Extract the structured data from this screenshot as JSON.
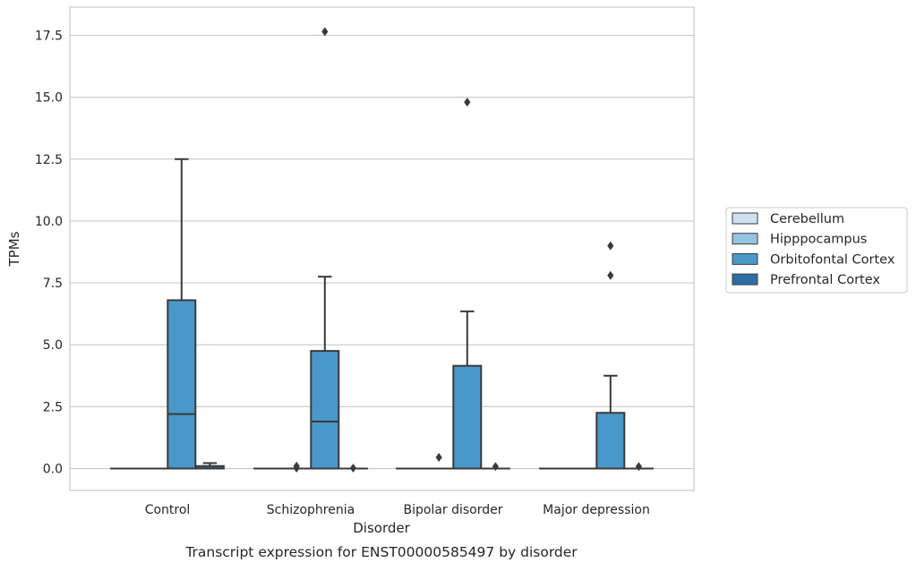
{
  "chart_data": {
    "type": "box",
    "title": "",
    "caption": "Transcript expression for ENST00000585497 by disorder",
    "xlabel": "Disorder",
    "ylabel": "TPMs",
    "ylim": [
      -0.85,
      18.55
    ],
    "yticks": [
      0.0,
      2.5,
      5.0,
      7.5,
      10.0,
      12.5,
      15.0,
      17.5
    ],
    "ytick_labels": [
      "0.0",
      "2.5",
      "5.0",
      "7.5",
      "10.0",
      "12.5",
      "15.0",
      "17.5"
    ],
    "grid": "horizontal",
    "legend_position": "center-right outside",
    "categories": [
      "Control",
      "Schizophrenia",
      "Bipolar disorder",
      "Major depression"
    ],
    "series": [
      {
        "name": "Cerebellum",
        "color": "#d0e1f2",
        "boxes": [
          {
            "q1": 0.0,
            "median": 0.0,
            "q3": 0.0,
            "whisker_low": 0.0,
            "whisker_high": 0.0,
            "outliers": []
          },
          {
            "q1": 0.0,
            "median": 0.0,
            "q3": 0.0,
            "whisker_low": 0.0,
            "whisker_high": 0.0,
            "outliers": []
          },
          {
            "q1": 0.0,
            "median": 0.0,
            "q3": 0.0,
            "whisker_low": 0.0,
            "whisker_high": 0.0,
            "outliers": []
          },
          {
            "q1": 0.0,
            "median": 0.0,
            "q3": 0.0,
            "whisker_low": 0.0,
            "whisker_high": 0.0,
            "outliers": []
          }
        ]
      },
      {
        "name": "Hipppocampus",
        "color": "#94c4df",
        "boxes": [
          {
            "q1": 0.0,
            "median": 0.0,
            "q3": 0.0,
            "whisker_low": 0.0,
            "whisker_high": 0.0,
            "outliers": []
          },
          {
            "q1": 0.0,
            "median": 0.0,
            "q3": 0.0,
            "whisker_low": 0.0,
            "whisker_high": 0.0,
            "outliers": [
              0.02,
              0.1
            ]
          },
          {
            "q1": 0.0,
            "median": 0.0,
            "q3": 0.0,
            "whisker_low": 0.0,
            "whisker_high": 0.0,
            "outliers": [
              0.45
            ]
          },
          {
            "q1": 0.0,
            "median": 0.0,
            "q3": 0.0,
            "whisker_low": 0.0,
            "whisker_high": 0.0,
            "outliers": []
          }
        ]
      },
      {
        "name": "Orbitofontal Cortex",
        "color": "#4a98c9",
        "boxes": [
          {
            "q1": 0.0,
            "median": 2.2,
            "q3": 6.8,
            "whisker_low": 0.0,
            "whisker_high": 12.5,
            "outliers": []
          },
          {
            "q1": 0.0,
            "median": 1.9,
            "q3": 4.75,
            "whisker_low": 0.0,
            "whisker_high": 7.75,
            "outliers": [
              17.65
            ]
          },
          {
            "q1": 0.0,
            "median": 0.0,
            "q3": 4.15,
            "whisker_low": 0.0,
            "whisker_high": 6.35,
            "outliers": [
              14.8
            ]
          },
          {
            "q1": 0.0,
            "median": 0.0,
            "q3": 2.25,
            "whisker_low": 0.0,
            "whisker_high": 3.75,
            "outliers": [
              7.8,
              9.0
            ]
          }
        ]
      },
      {
        "name": "Prefrontal Cortex",
        "color": "#2e6ea6",
        "boxes": [
          {
            "q1": 0.0,
            "median": 0.0,
            "q3": 0.1,
            "whisker_low": 0.0,
            "whisker_high": 0.22,
            "outliers": []
          },
          {
            "q1": 0.0,
            "median": 0.0,
            "q3": 0.0,
            "whisker_low": 0.0,
            "whisker_high": 0.0,
            "outliers": [
              0.02
            ]
          },
          {
            "q1": 0.0,
            "median": 0.0,
            "q3": 0.0,
            "whisker_low": 0.0,
            "whisker_high": 0.0,
            "outliers": [
              0.08
            ]
          },
          {
            "q1": 0.0,
            "median": 0.0,
            "q3": 0.0,
            "whisker_low": 0.0,
            "whisker_high": 0.0,
            "outliers": [
              0.08
            ]
          }
        ]
      }
    ]
  }
}
